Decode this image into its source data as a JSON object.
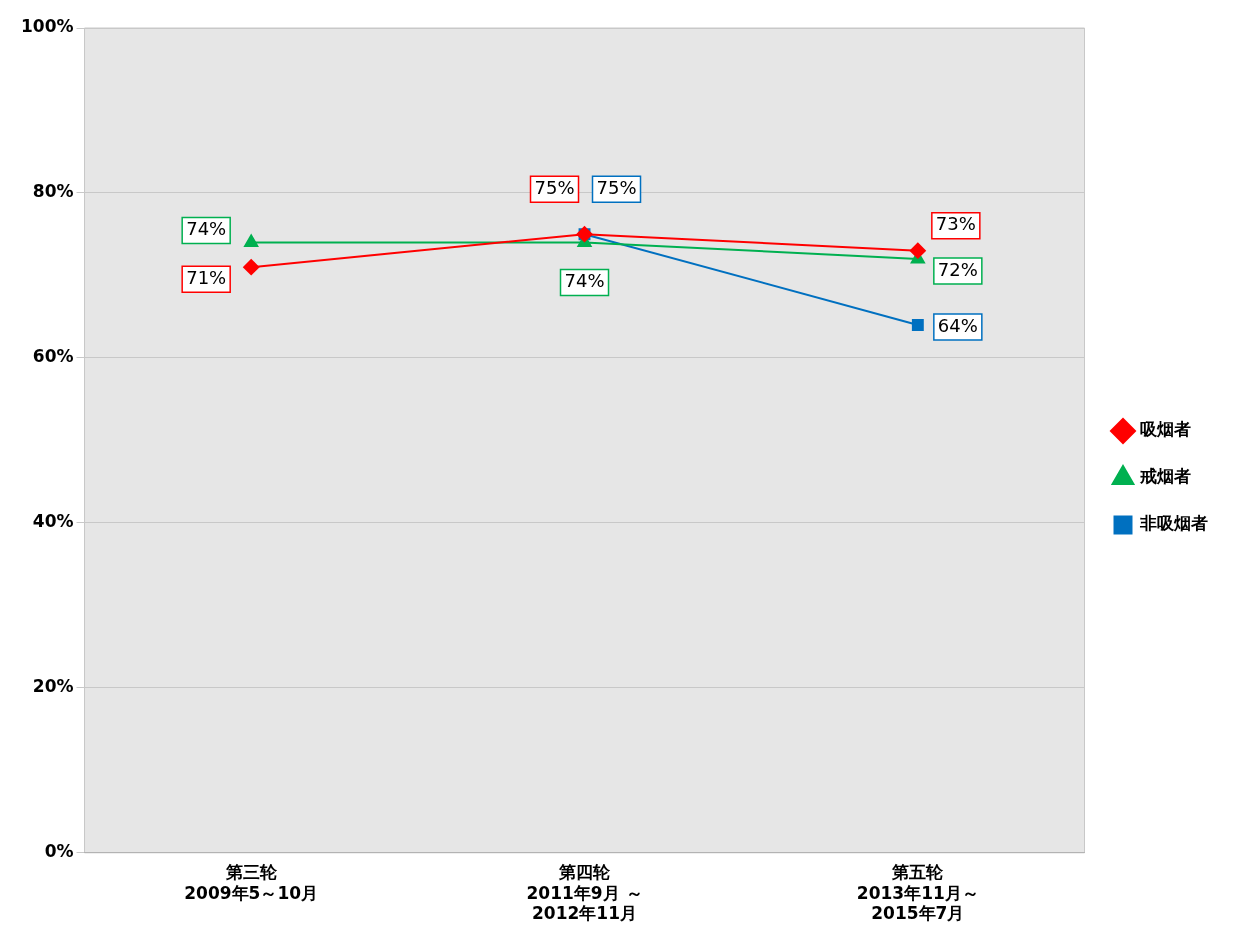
{
  "chart_data": {
    "type": "line",
    "categories": [
      "第三轮\n2009年5～10月",
      "第四轮\n2011年9月 ～\n2012年11月",
      "第五轮\n2013年11月～\n2015年7月"
    ],
    "series": [
      {
        "name": "吸烟者",
        "color": "#ff0000",
        "marker": "diamond",
        "values": [
          71,
          75,
          73
        ],
        "value_labels": [
          "71%",
          "75%",
          "73%"
        ]
      },
      {
        "name": "戒烟者",
        "color": "#00b050",
        "marker": "triangle",
        "values": [
          74,
          74,
          72
        ],
        "value_labels": [
          "74%",
          "74%",
          "72%"
        ]
      },
      {
        "name": "非吸烟者",
        "color": "#0070c0",
        "marker": "square",
        "values": [
          null,
          75,
          64
        ],
        "value_labels": [
          null,
          "75%",
          "64%"
        ]
      }
    ],
    "ylim": [
      0,
      100
    ],
    "yticks": [
      {
        "value": 0,
        "label": "0%"
      },
      {
        "value": 20,
        "label": "20%"
      },
      {
        "value": 40,
        "label": "40%"
      },
      {
        "value": 60,
        "label": "60%"
      },
      {
        "value": 80,
        "label": "80%"
      },
      {
        "value": 100,
        "label": "100%"
      }
    ],
    "grid": "y",
    "legend": "right",
    "line_style": "solid"
  }
}
